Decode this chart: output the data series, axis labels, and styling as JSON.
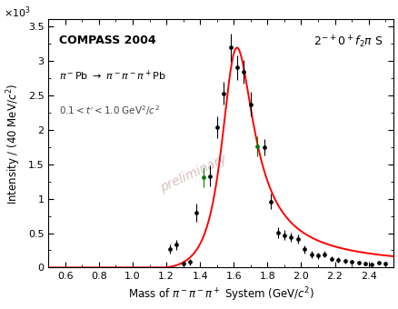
{
  "title_label": "COMPASS 2004",
  "reaction_text": "$\\pi^-$Pb $\\rightarrow$ $\\pi^-\\pi^-\\pi^+$Pb",
  "t_cut": "0.1 < t' < 1.0 GeV$^2$/$c^2$",
  "wave_label": "$2^{-+}0^+f_2\\pi$ S",
  "preliminary_text": "preliminary",
  "xlabel": "Mass of $\\pi^-\\pi^-\\pi^+$ System (GeV/$c^2$)",
  "ylabel": "Intensity / (40 MeV/$c^2$)",
  "xlim": [
    0.5,
    2.55
  ],
  "ylim": [
    0,
    3600
  ],
  "data_x": [
    1.22,
    1.26,
    1.3,
    1.34,
    1.38,
    1.42,
    1.46,
    1.5,
    1.54,
    1.58,
    1.62,
    1.66,
    1.7,
    1.74,
    1.78,
    1.82,
    1.86,
    1.9,
    1.94,
    1.98,
    2.02,
    2.06,
    2.1,
    2.14,
    2.18,
    2.22,
    2.26,
    2.3,
    2.34,
    2.38,
    2.42,
    2.46,
    2.5
  ],
  "data_y": [
    270,
    330,
    60,
    80,
    800,
    1310,
    1330,
    2040,
    2530,
    3190,
    2900,
    2840,
    2370,
    1760,
    1750,
    960,
    510,
    470,
    440,
    420,
    265,
    195,
    175,
    195,
    130,
    110,
    95,
    80,
    68,
    58,
    48,
    65,
    58
  ],
  "data_yerr": [
    65,
    70,
    40,
    48,
    130,
    148,
    148,
    158,
    168,
    200,
    175,
    175,
    175,
    148,
    118,
    115,
    78,
    75,
    68,
    65,
    58,
    52,
    48,
    48,
    38,
    38,
    32,
    32,
    28,
    28,
    22,
    22,
    22
  ],
  "green_indices": [
    5,
    13
  ],
  "fit_color": "#ff0000",
  "data_color": "#000000",
  "green_color": "#007700",
  "background": "#ffffff"
}
